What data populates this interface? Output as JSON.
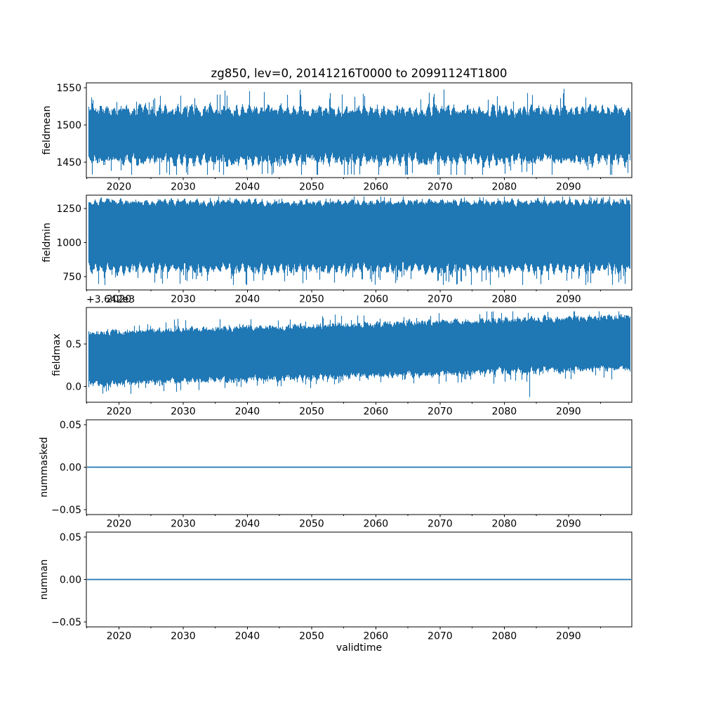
{
  "chart_data": {
    "type": "line",
    "title": "zg850, lev=0, 20141216T0000 to 20991124T1800",
    "xlabel": "validtime",
    "grid": false,
    "legend": null,
    "line_color": "#1f77b4",
    "x_range": [
      2014.93,
      2099.85
    ],
    "x_ticks": [
      {
        "value": 2020,
        "label": "2020"
      },
      {
        "value": 2030,
        "label": "2030"
      },
      {
        "value": 2040,
        "label": "2040"
      },
      {
        "value": 2050,
        "label": "2050"
      },
      {
        "value": 2060,
        "label": "2060"
      },
      {
        "value": 2070,
        "label": "2070"
      },
      {
        "value": 2080,
        "label": "2080"
      },
      {
        "value": 2090,
        "label": "2090"
      }
    ],
    "x_minor_ticks": [
      2015,
      2025,
      2035,
      2045,
      2055,
      2065,
      2075,
      2085,
      2095
    ],
    "panels": [
      {
        "ylabel": "fieldmean",
        "ylim": [
          1429.2,
          1556.6
        ],
        "yticks": [
          {
            "value": 1450,
            "label": "1450"
          },
          {
            "value": 1500,
            "label": "1500"
          },
          {
            "value": 1550,
            "label": "1550"
          }
        ],
        "series": {
          "kind": "noise_band",
          "seed": 42,
          "approx_mean": 1489,
          "approx_range": [
            1433,
            1551
          ],
          "center_start": 1489,
          "center_end": 1489,
          "top_base": 18,
          "top_jitter": 18,
          "top_spike_prob": 0.06,
          "top_spike_amp": 26,
          "seasonal_top": 8,
          "bot_base": 22,
          "bot_jitter": 20,
          "bot_spike_prob": 0.07,
          "bot_spike_amp": 30,
          "seasonal_bot": 8,
          "clamp": [
            1433,
            1551
          ],
          "deep_spikes": []
        }
      },
      {
        "ylabel": "fieldmin",
        "ylim": [
          652.0,
          1347.9
        ],
        "yticks": [
          {
            "value": 750,
            "label": "750"
          },
          {
            "value": 1000,
            "label": "1000"
          },
          {
            "value": 1250,
            "label": "1250"
          }
        ],
        "series": {
          "kind": "noise_band",
          "seed": 7,
          "approx_mean": 1072,
          "approx_range": [
            688,
            1338
          ],
          "center_start": 1072,
          "center_end": 1072,
          "top_base": 185,
          "top_jitter": 55,
          "top_spike_prob": 0.05,
          "top_spike_amp": 45,
          "seasonal_top": 25,
          "bot_base": 200,
          "bot_jitter": 75,
          "bot_spike_prob": 0.12,
          "bot_spike_amp": 110,
          "seasonal_bot": 55,
          "clamp": [
            688,
            1338
          ],
          "deep_spikes": []
        }
      },
      {
        "ylabel": "fieldmax",
        "offset_text": "+3.642e3",
        "ylim": [
          -0.186,
          0.93
        ],
        "yticks": [
          {
            "value": 0.0,
            "label": "0.0"
          },
          {
            "value": 0.5,
            "label": "0.5"
          }
        ],
        "series": {
          "kind": "noise_band",
          "seed": 13,
          "approx_mean": 0.46,
          "approx_range": [
            -0.125,
            0.885
          ],
          "center_start": 0.37,
          "center_end": 0.56,
          "top_base": 0.2,
          "top_jitter": 0.11,
          "top_spike_prob": 0.06,
          "top_spike_amp": 0.12,
          "seasonal_top": 0.02,
          "bot_base": 0.27,
          "bot_jitter": 0.12,
          "bot_spike_prob": 0.08,
          "bot_spike_amp": 0.13,
          "seasonal_bot": 0.025,
          "clamp": [
            -0.095,
            0.885
          ],
          "deep_spikes": [
            {
              "t": 0.815,
              "value": -0.125
            }
          ]
        }
      },
      {
        "ylabel": "nummasked",
        "ylim": [
          -0.0558,
          0.0558
        ],
        "yticks": [
          {
            "value": -0.05,
            "label": "−0.05"
          },
          {
            "value": 0.0,
            "label": "0.00"
          },
          {
            "value": 0.05,
            "label": "0.05"
          }
        ],
        "series": {
          "kind": "constant",
          "value": 0
        }
      },
      {
        "ylabel": "numnan",
        "ylim": [
          -0.0558,
          0.0558
        ],
        "yticks": [
          {
            "value": -0.05,
            "label": "−0.05"
          },
          {
            "value": 0.0,
            "label": "0.00"
          },
          {
            "value": 0.05,
            "label": "0.05"
          }
        ],
        "series": {
          "kind": "constant",
          "value": 0
        }
      }
    ]
  }
}
